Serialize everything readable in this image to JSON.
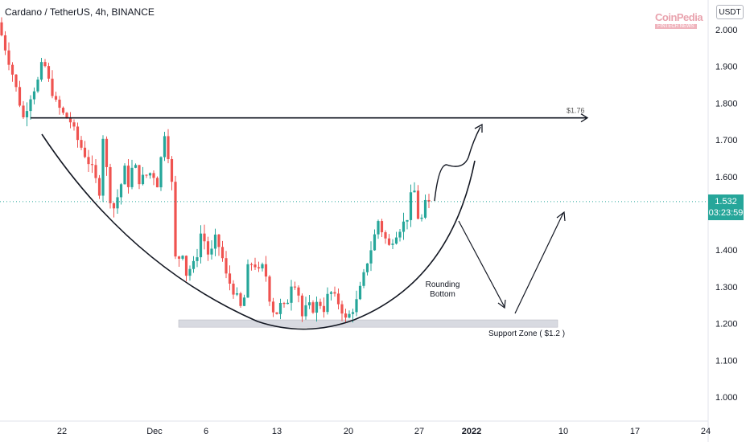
{
  "header": {
    "title": "Cardano / TetherUS, 4h, BINANCE",
    "currency": "USDT"
  },
  "watermark": {
    "name": "CoinPedia",
    "tagline": "FINTECH NEWS"
  },
  "price_tag": {
    "price": "1.532",
    "countdown": "03:23:59"
  },
  "colors": {
    "up": "#26a69a",
    "down": "#ef5350",
    "annotation": "#131722",
    "current_price_line": "#26a69a",
    "support_zone": "#d1d4dc"
  },
  "chart_data": {
    "type": "candlestick",
    "title": "Cardano / TetherUS, 4h, BINANCE",
    "ylim": [
      0.955,
      2.055
    ],
    "y_ticks": [
      "2.000",
      "1.900",
      "1.800",
      "1.700",
      "1.600",
      "1.500",
      "1.400",
      "1.300",
      "1.200",
      "1.100",
      "1.000"
    ],
    "x_ticks": [
      "22",
      "Dec",
      "6",
      "13",
      "20",
      "27",
      "2022",
      "10",
      "17",
      "24"
    ],
    "current_price": 1.532,
    "trend": [
      [
        0,
        2.02
      ],
      [
        2,
        1.95
      ],
      [
        4,
        1.88
      ],
      [
        6,
        1.8
      ],
      [
        7,
        1.76
      ],
      [
        9,
        1.82
      ],
      [
        11,
        1.86
      ],
      [
        12.5,
        1.92
      ],
      [
        14,
        1.86
      ],
      [
        16,
        1.8
      ],
      [
        18,
        1.77
      ],
      [
        20,
        1.75
      ],
      [
        22,
        1.7
      ],
      [
        24,
        1.66
      ],
      [
        26,
        1.62
      ],
      [
        28,
        1.56
      ],
      [
        29.2,
        1.74
      ],
      [
        30,
        1.62
      ],
      [
        31.5,
        1.5
      ],
      [
        33.5,
        1.56
      ],
      [
        35,
        1.62
      ],
      [
        36,
        1.58
      ],
      [
        37.5,
        1.64
      ],
      [
        39,
        1.59
      ],
      [
        40.5,
        1.6
      ],
      [
        42,
        1.61
      ],
      [
        43.5,
        1.6
      ],
      [
        44.5,
        1.56
      ],
      [
        45.5,
        1.74
      ],
      [
        46.5,
        1.7
      ],
      [
        48,
        1.58
      ],
      [
        48.8,
        1.4
      ],
      [
        49.5,
        1.32
      ],
      [
        50.5,
        1.44
      ],
      [
        51.5,
        1.35
      ],
      [
        52.5,
        1.32
      ],
      [
        53.5,
        1.38
      ],
      [
        54.5,
        1.34
      ],
      [
        55.5,
        1.44
      ],
      [
        56.5,
        1.45
      ],
      [
        57.5,
        1.4
      ],
      [
        58.5,
        1.38
      ],
      [
        60,
        1.43
      ],
      [
        61.5,
        1.4
      ],
      [
        63,
        1.33
      ],
      [
        64.5,
        1.3
      ],
      [
        66,
        1.27
      ],
      [
        67.5,
        1.23
      ],
      [
        69,
        1.35
      ],
      [
        70.5,
        1.37
      ],
      [
        72,
        1.34
      ],
      [
        73.5,
        1.36
      ],
      [
        75,
        1.27
      ],
      [
        76.5,
        1.22
      ],
      [
        78,
        1.25
      ],
      [
        79.5,
        1.24
      ],
      [
        81,
        1.31
      ],
      [
        82.5,
        1.31
      ],
      [
        84,
        1.22
      ],
      [
        85.5,
        1.25
      ],
      [
        87,
        1.24
      ],
      [
        88.5,
        1.26
      ],
      [
        90,
        1.24
      ],
      [
        91.5,
        1.29
      ],
      [
        93,
        1.27
      ],
      [
        94.5,
        1.25
      ],
      [
        96,
        1.21
      ],
      [
        97.5,
        1.23
      ],
      [
        99,
        1.26
      ],
      [
        100.5,
        1.31
      ],
      [
        102,
        1.37
      ],
      [
        103.5,
        1.42
      ],
      [
        105,
        1.48
      ],
      [
        106.5,
        1.44
      ],
      [
        108,
        1.41
      ],
      [
        109.5,
        1.44
      ],
      [
        111,
        1.46
      ],
      [
        112.5,
        1.48
      ],
      [
        113.5,
        1.5
      ],
      [
        114.5,
        1.59
      ],
      [
        115.5,
        1.53
      ],
      [
        116.5,
        1.45
      ],
      [
        117.5,
        1.52
      ],
      [
        118.5,
        1.53
      ]
    ],
    "candle_count": 119,
    "annotations": {
      "resistance_level": 1.76,
      "resistance_label": "$1.76",
      "support_zone": [
        1.19,
        1.21
      ],
      "support_label": "Support Zone ( $1.2 )",
      "pattern_label": "Rounding Bottom"
    }
  }
}
